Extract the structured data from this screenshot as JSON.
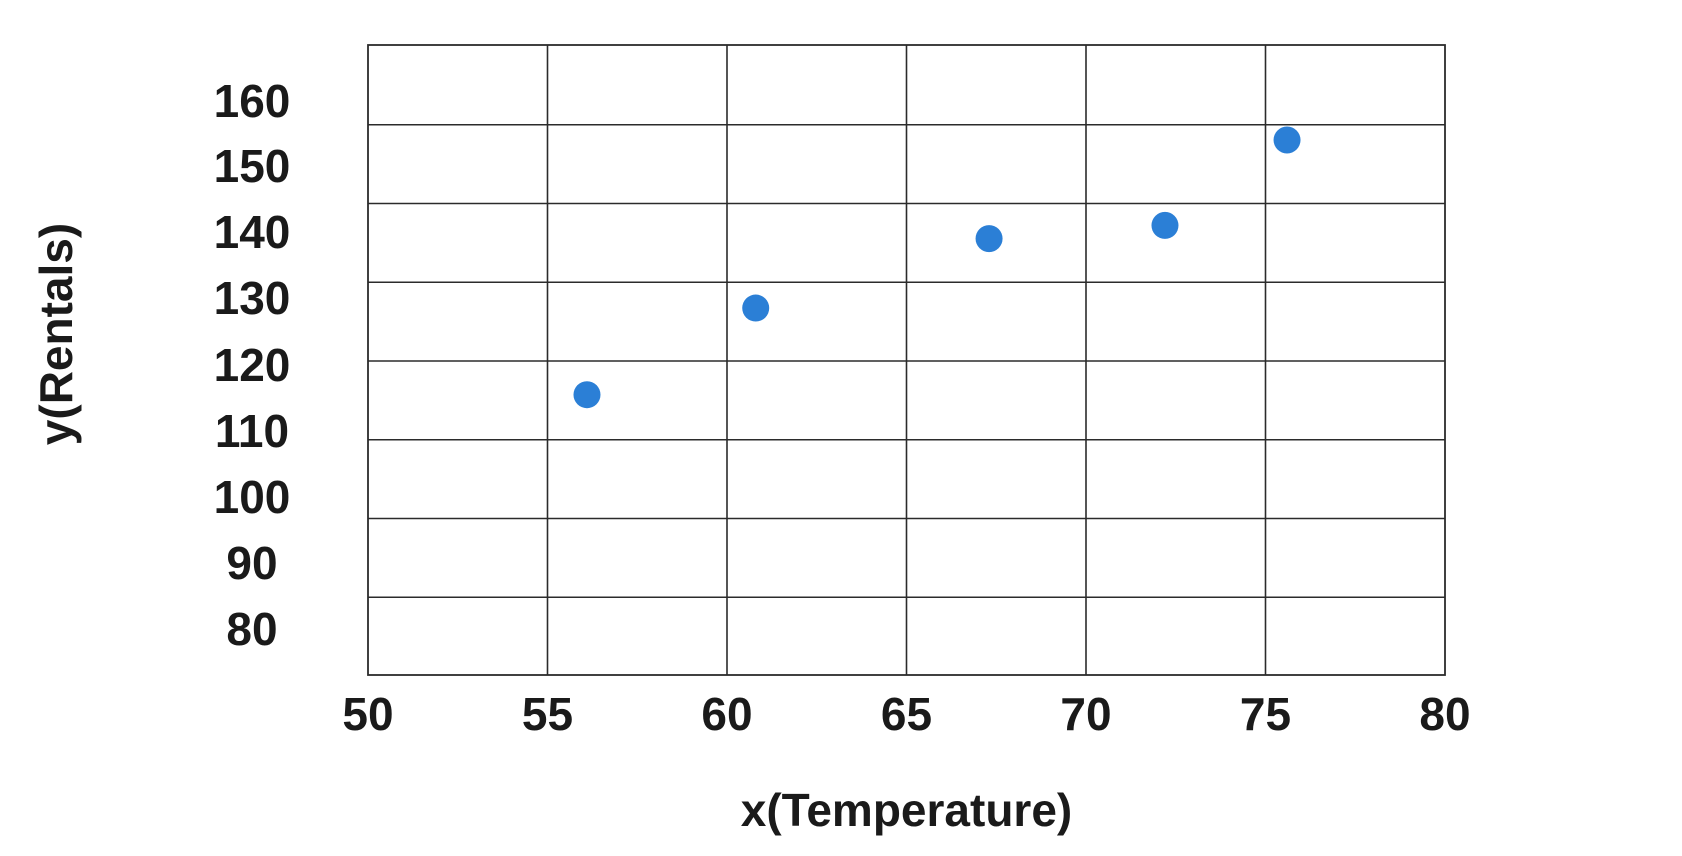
{
  "chart_data": {
    "type": "scatter",
    "title": "",
    "xlabel": "x(Temperature)",
    "ylabel": "y(Rentals)",
    "xlim": [
      50,
      80
    ],
    "ylim": [
      80,
      160
    ],
    "x_ticks": [
      "50",
      "55",
      "60",
      "65",
      "70",
      "75",
      "80"
    ],
    "y_ticks": [
      "160",
      "150",
      "140",
      "130",
      "120",
      "110",
      "100",
      "90",
      "80"
    ],
    "grid": true,
    "point_color": "#2b7fd6",
    "series": [
      {
        "x": [
          56.1,
          60.8,
          67.3,
          72.2,
          75.6
        ],
        "y": [
          115.5,
          128.5,
          139,
          141,
          154
        ]
      }
    ]
  }
}
